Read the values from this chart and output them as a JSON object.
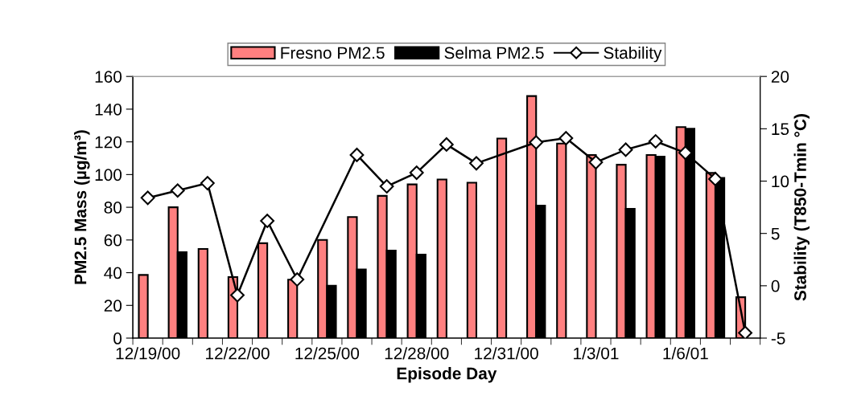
{
  "chart_data": {
    "type": "bar",
    "xlabel": "Episode Day",
    "ylabel": "PM2.5 Mass (µg/m³)",
    "y2label": "Stability (T850-Tmin °C)",
    "categories": [
      "12/19/00",
      null,
      null,
      "12/22/00",
      null,
      null,
      "12/25/00",
      null,
      null,
      "12/28/00",
      null,
      null,
      "12/31/00",
      null,
      null,
      "1/3/01",
      null,
      null,
      "1/6/01",
      null,
      null
    ],
    "series": [
      {
        "name": "Fresno PM2.5",
        "color": "#ff8080",
        "values": [
          38.6,
          80,
          54.5,
          37.3,
          58,
          35.7,
          60,
          74,
          87,
          94,
          97,
          95,
          122,
          148,
          119,
          112,
          106,
          112,
          129,
          101,
          25
        ]
      },
      {
        "name": "Selma PM2.5",
        "color": "#000000",
        "values": [
          null,
          52.5,
          null,
          null,
          null,
          null,
          32,
          42,
          53.5,
          51,
          null,
          null,
          null,
          81,
          null,
          null,
          79,
          111,
          128,
          98,
          null
        ]
      },
      {
        "name": "Stability",
        "type": "line",
        "axis": "y2",
        "color": "#000000",
        "marker": "diamond",
        "line_style": "solid",
        "values": [
          8.4,
          9.1,
          9.8,
          -0.9,
          6.2,
          0.6,
          null,
          12.5,
          9.5,
          10.8,
          13.5,
          11.7,
          null,
          13.7,
          14.1,
          11.8,
          13.0,
          13.8,
          12.7,
          10.2,
          -4.5
        ]
      }
    ],
    "ylim": [
      0,
      160
    ],
    "yticks": [
      0,
      20,
      40,
      60,
      80,
      100,
      120,
      140,
      160
    ],
    "y2lim": [
      -5,
      20
    ],
    "y2ticks": [
      -5,
      0,
      5,
      10,
      15,
      20
    ],
    "grid": false,
    "legend": "top"
  }
}
